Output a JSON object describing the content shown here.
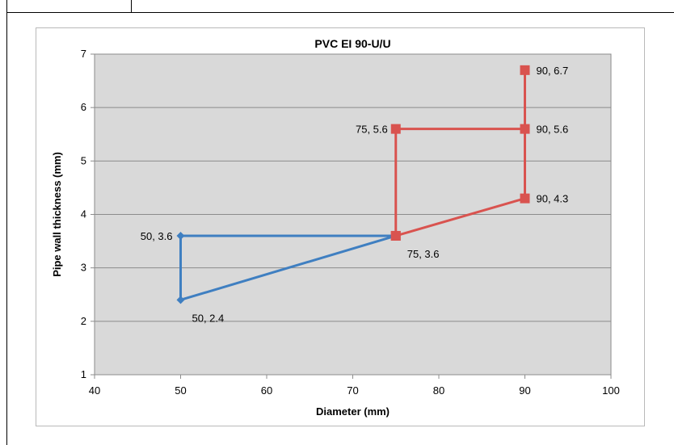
{
  "chart_data": {
    "type": "line",
    "title": "PVC EI 90-U/U",
    "xlabel": "Diameter (mm)",
    "ylabel": "Pipe wall thickness  (mm)",
    "xlim": [
      40,
      100
    ],
    "ylim": [
      1,
      7
    ],
    "xticks": [
      40,
      50,
      60,
      70,
      80,
      90,
      100
    ],
    "yticks": [
      1,
      2,
      3,
      4,
      5,
      6,
      7
    ],
    "grid": "horizontal",
    "legend": "none",
    "series": [
      {
        "color": "#3f7fc1",
        "marker": "diamond",
        "points": [
          {
            "x": 75,
            "y": 3.6
          },
          {
            "x": 50,
            "y": 3.6
          },
          {
            "x": 50,
            "y": 2.4
          },
          {
            "x": 75,
            "y": 3.6
          }
        ]
      },
      {
        "color": "#d9534f",
        "marker": "square",
        "points": [
          {
            "x": 75,
            "y": 3.6
          },
          {
            "x": 75,
            "y": 5.6
          },
          {
            "x": 90,
            "y": 5.6
          },
          {
            "x": 90,
            "y": 6.7
          },
          {
            "x": 90,
            "y": 4.3
          },
          {
            "x": 75,
            "y": 3.6
          }
        ]
      }
    ],
    "data_labels": [
      {
        "text": "50, 3.6",
        "x": 50,
        "y": 3.6,
        "anchor": "left"
      },
      {
        "text": "50, 2.4",
        "x": 50,
        "y": 2.4,
        "anchor": "below-right"
      },
      {
        "text": "75, 3.6",
        "x": 75,
        "y": 3.6,
        "anchor": "below-right"
      },
      {
        "text": "75, 5.6",
        "x": 75,
        "y": 5.6,
        "anchor": "left"
      },
      {
        "text": "90, 5.6",
        "x": 90,
        "y": 5.6,
        "anchor": "right"
      },
      {
        "text": "90, 6.7",
        "x": 90,
        "y": 6.7,
        "anchor": "right"
      },
      {
        "text": "90, 4.3",
        "x": 90,
        "y": 4.3,
        "anchor": "right"
      }
    ]
  }
}
